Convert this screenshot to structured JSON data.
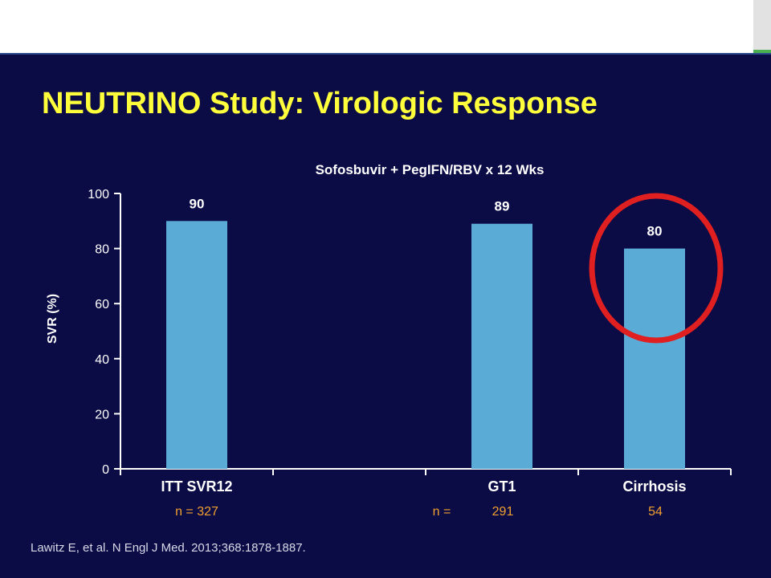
{
  "slide": {
    "title": "NEUTRINO Study: Virologic Response",
    "citation": "Lawitz E, et al. N Engl J Med. 2013;368:1878-1887."
  },
  "colors": {
    "background": "#0b0b45",
    "title": "#ffff3c",
    "bar": "#5aabd6",
    "n_text": "#f0a030",
    "highlight_circle": "#e02020"
  },
  "chart_data": {
    "type": "bar",
    "title": "Sofosbuvir + PegIFN/RBV x 12 Wks",
    "ylabel": "SVR (%)",
    "xlabel": "",
    "ylim": [
      0,
      100
    ],
    "yticks": [
      0,
      20,
      40,
      60,
      80,
      100
    ],
    "ytick_labels": [
      "0",
      "20",
      "40",
      "60",
      "80",
      "100"
    ],
    "categories": [
      "ITT SVR12",
      "",
      "GT1",
      "Cirrhosis"
    ],
    "values": [
      90,
      null,
      89,
      80
    ],
    "value_labels": [
      "90",
      "",
      "89",
      "80"
    ],
    "n_labels": [
      "n = 327",
      "n =",
      "291",
      "54"
    ],
    "highlighted_category": "Cirrhosis",
    "grid": false,
    "legend": "none"
  }
}
